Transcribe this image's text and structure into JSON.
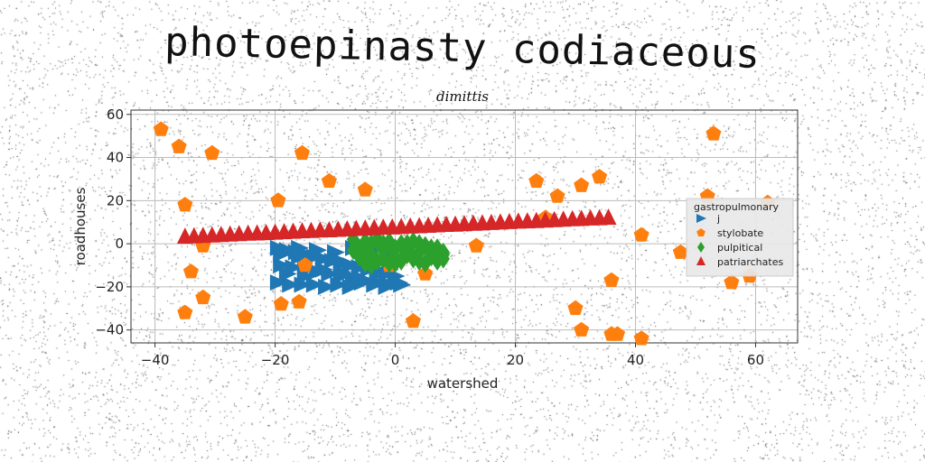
{
  "page_title": "photoepinasty codiaceous",
  "chart_data": {
    "type": "scatter",
    "title": "dimittis",
    "xlabel": "watershed",
    "ylabel": "roadhouses",
    "xlim": [
      -44,
      67
    ],
    "ylim": [
      -46,
      62
    ],
    "xticks": [
      -40,
      -20,
      0,
      20,
      40,
      60
    ],
    "yticks": [
      -40,
      -20,
      0,
      20,
      40,
      60
    ],
    "grid": true,
    "legend": {
      "title": "gastropulmonary",
      "placement": "right"
    },
    "series": [
      {
        "name": "j",
        "marker": "triangle-right",
        "color": "#1f77b4",
        "x": [
          -19.5,
          -18,
          -16.5,
          -15,
          -13.5,
          -12,
          -10.5,
          -9,
          -7.5,
          -6,
          -4.5,
          -3,
          -1.5,
          0,
          -19,
          -17,
          -15,
          -13,
          -11,
          -9,
          -7,
          -5,
          -3,
          -1,
          1,
          -19.5,
          -17.5,
          -15.5,
          -13.5,
          -11.5,
          -9.5,
          -7.5,
          -5.5,
          -3.5,
          -1.5,
          0.5,
          -19,
          -16,
          -13,
          -10,
          -7,
          -4,
          -1,
          -18,
          -15,
          -12,
          -9,
          -6,
          -3,
          0,
          -16,
          -13,
          -10,
          -6,
          -3,
          -1
        ],
        "y": [
          -2,
          -3,
          -4,
          -5,
          -6,
          -7,
          -8,
          -9,
          -10,
          -11,
          -12,
          -13,
          -14,
          -15,
          -10,
          -11,
          -12,
          -13,
          -14,
          -15,
          -16,
          -17,
          -18,
          -19,
          -19,
          -18,
          -19,
          -19,
          -19,
          -20,
          -19,
          -20,
          -18,
          -19,
          -20,
          -18,
          -5,
          -6,
          -3,
          -4,
          -2,
          -3,
          -5,
          -14,
          -15,
          -12,
          -13,
          -11,
          -9,
          -8,
          -2,
          -3,
          -7,
          -16,
          -14,
          -12
        ]
      },
      {
        "name": "stylobate",
        "marker": "pentagon",
        "color": "#ff7f0e",
        "x": [
          -39,
          -36,
          -30.5,
          -35,
          -32,
          -34,
          -32,
          -35,
          -25,
          -19.5,
          -19,
          -15.5,
          -16,
          -15,
          -11,
          -5,
          -1,
          3,
          5,
          13.5,
          23.5,
          25,
          27,
          31,
          34,
          36,
          36,
          37,
          41,
          31,
          30,
          41,
          47.5,
          52,
          53,
          56,
          59,
          62
        ],
        "y": [
          53,
          45,
          42,
          18,
          -1,
          -13,
          -25,
          -32,
          -34,
          20,
          -28,
          42,
          -27,
          -10,
          29,
          25,
          -10,
          -36,
          -14,
          -1,
          29,
          12,
          22,
          27,
          31,
          -17,
          -42,
          -42,
          4,
          -40,
          -30,
          -44,
          -4,
          22,
          51,
          -18,
          -15,
          19
        ]
      },
      {
        "name": "pulpitical",
        "marker": "diamond",
        "color": "#2ca02c",
        "x": [
          -7,
          -6,
          -5,
          -4,
          -3,
          -2,
          -1,
          0,
          1,
          2,
          3,
          4,
          5,
          6,
          7,
          8,
          -6,
          -4,
          -2,
          0,
          2,
          4,
          6,
          8,
          -7,
          -5,
          -3,
          -1,
          1,
          3,
          5,
          7,
          -5,
          -3,
          -1,
          1,
          3,
          5,
          7,
          -6,
          -2,
          2,
          6,
          -4,
          0,
          4,
          8
        ],
        "y": [
          -3,
          -2,
          -1,
          0,
          1,
          0,
          -1,
          -2,
          -1,
          0,
          1,
          0,
          -1,
          -2,
          -3,
          -4,
          -6,
          -5,
          -7,
          -6,
          -5,
          -4,
          -6,
          -7,
          2,
          1,
          2,
          1,
          0,
          1,
          -1,
          -2,
          -9,
          -8,
          -9,
          -8,
          -7,
          -9,
          -8,
          -4,
          -3,
          -3,
          -4,
          -10,
          -9,
          -8,
          -5
        ]
      },
      {
        "name": "patriarchates",
        "marker": "triangle-up",
        "color": "#d62728",
        "x": [
          -35,
          -33.5,
          -32,
          -30.5,
          -29,
          -27.5,
          -26,
          -24.5,
          -23,
          -21.5,
          -20,
          -18.5,
          -17,
          -15.5,
          -14,
          -12.5,
          -11,
          -9.5,
          -8,
          -6.5,
          -5,
          -3.5,
          -2,
          -0.5,
          1,
          2.5,
          4,
          5.5,
          7,
          8.5,
          10,
          11.5,
          13,
          14.5,
          16,
          17.5,
          19,
          20.5,
          22,
          23.5,
          25,
          26.5,
          28,
          29.5,
          31,
          32.5,
          34,
          35.5
        ],
        "y": [
          3,
          3.2,
          3.4,
          3.6,
          3.8,
          4,
          4.2,
          4.4,
          4.5,
          4.7,
          4.9,
          5.1,
          5.3,
          5.5,
          5.7,
          5.9,
          6,
          6.2,
          6.4,
          6.6,
          6.8,
          7,
          7.2,
          7.3,
          7.5,
          7.7,
          7.9,
          8.1,
          8.3,
          8.5,
          8.6,
          8.8,
          9,
          9.2,
          9.4,
          9.6,
          9.8,
          10,
          10.1,
          10.3,
          10.5,
          10.7,
          10.9,
          11.1,
          11.3,
          11.5,
          11.6,
          11.8
        ]
      }
    ]
  }
}
